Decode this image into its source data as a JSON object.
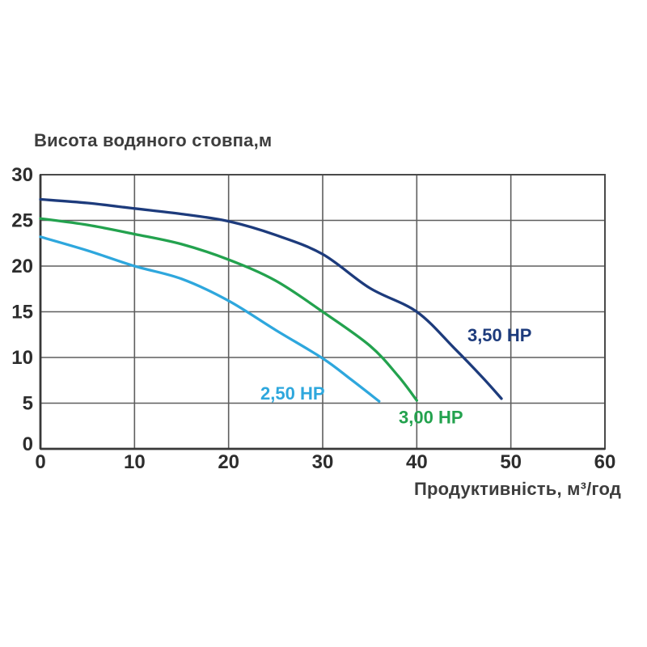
{
  "title": "Висота водяного стовпа,м",
  "xlabel": "Продуктивність, м³/год",
  "colors": {
    "background": "#ffffff",
    "grid": "#5e5e5e",
    "border": "#4a4a4a",
    "axis": "#383838",
    "tick_text": "#2d2d2d",
    "title_text": "#3d3d3d"
  },
  "chart_data": {
    "type": "line",
    "title": "Висота водяного стовпа,м",
    "xlabel": "Продуктивність, м³/год",
    "ylabel": "Висота водяного стовпа, м",
    "xlim": [
      0,
      60
    ],
    "ylim": [
      0,
      30
    ],
    "x_ticks": [
      0,
      10,
      20,
      30,
      40,
      50,
      60
    ],
    "y_ticks": [
      0,
      5,
      10,
      15,
      20,
      25,
      30
    ],
    "grid": true,
    "legend_position": "inline-labels",
    "series": [
      {
        "name": "2,50 HP",
        "color": "#2ea7dd",
        "label_pos": [
          26.8,
          6.1
        ],
        "points": [
          [
            0,
            23.2
          ],
          [
            5,
            21.7
          ],
          [
            10,
            20.0
          ],
          [
            15,
            18.6
          ],
          [
            20,
            16.2
          ],
          [
            25,
            13.0
          ],
          [
            30,
            9.9
          ],
          [
            33,
            7.6
          ],
          [
            36,
            5.2
          ]
        ]
      },
      {
        "name": "3,00 HP",
        "color": "#23a24e",
        "label_pos": [
          41.5,
          3.5
        ],
        "points": [
          [
            0,
            25.2
          ],
          [
            5,
            24.5
          ],
          [
            10,
            23.5
          ],
          [
            15,
            22.4
          ],
          [
            20,
            20.7
          ],
          [
            25,
            18.4
          ],
          [
            30,
            15.0
          ],
          [
            35,
            11.3
          ],
          [
            38,
            8.0
          ],
          [
            40,
            5.3
          ]
        ]
      },
      {
        "name": "3,50 HP",
        "color": "#1d3b7c",
        "label_pos": [
          48.8,
          12.5
        ],
        "points": [
          [
            0,
            27.3
          ],
          [
            5,
            26.9
          ],
          [
            10,
            26.3
          ],
          [
            15,
            25.7
          ],
          [
            20,
            24.9
          ],
          [
            25,
            23.4
          ],
          [
            30,
            21.3
          ],
          [
            35,
            17.6
          ],
          [
            40,
            15.0
          ],
          [
            44,
            11.0
          ],
          [
            47,
            7.8
          ],
          [
            49,
            5.5
          ]
        ]
      }
    ]
  }
}
